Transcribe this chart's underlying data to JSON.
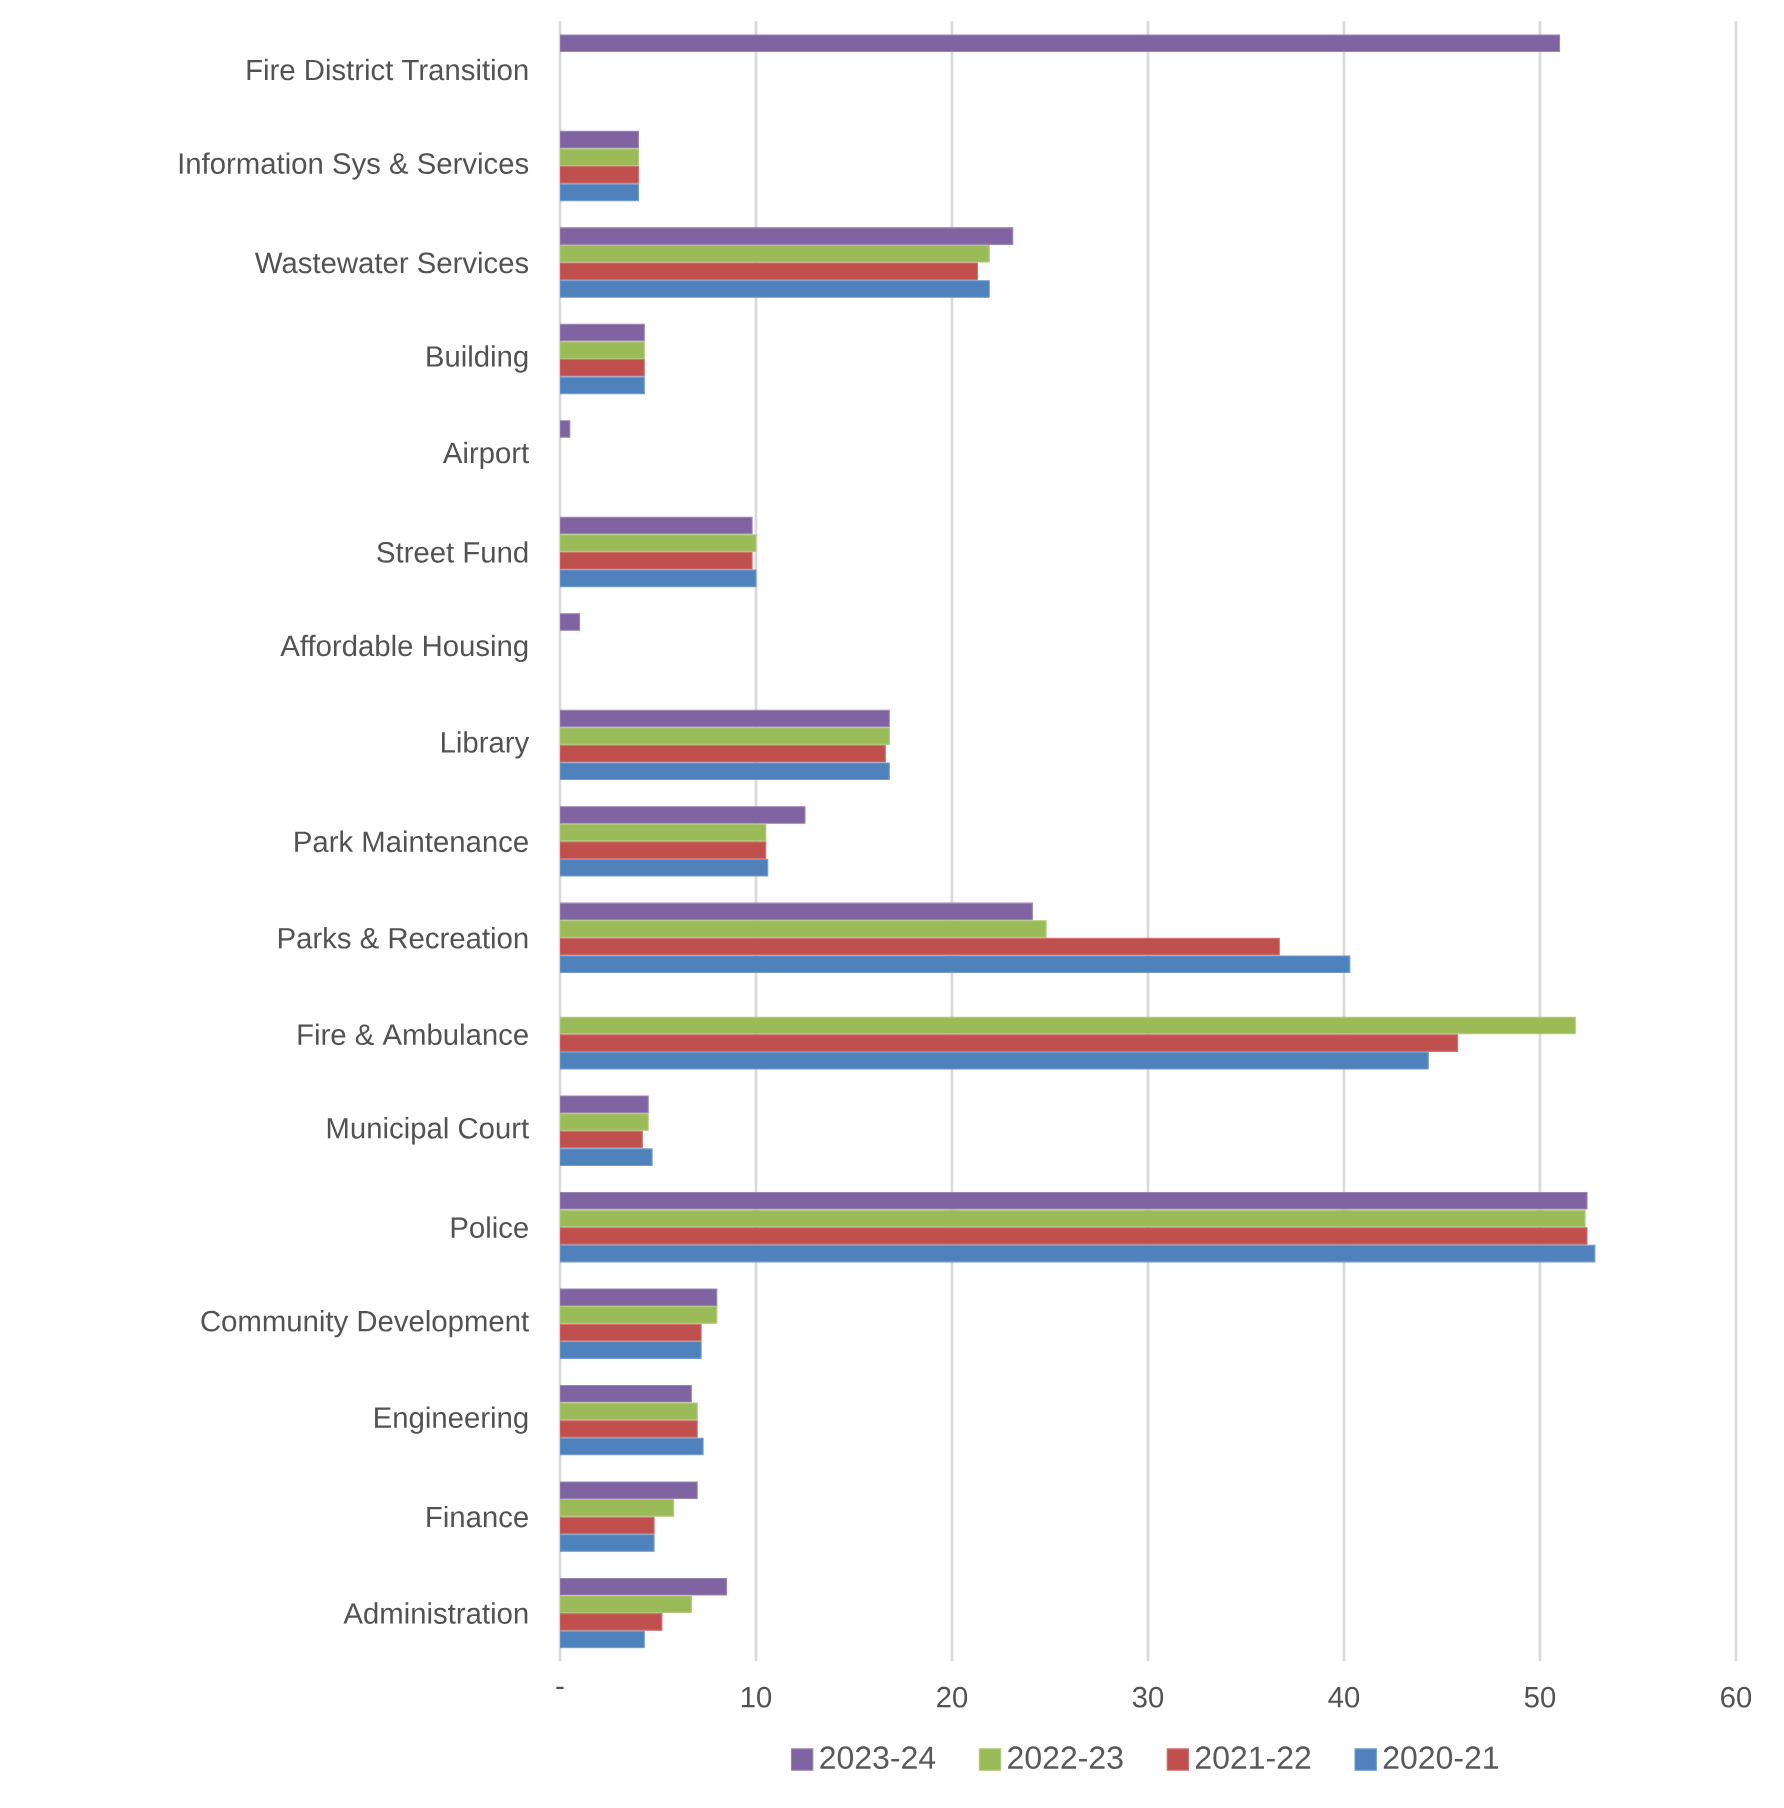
{
  "chart_data": {
    "type": "bar",
    "orientation": "horizontal",
    "categories": [
      "Fire District Transition",
      "Information Sys & Services",
      "Wastewater Services",
      "Building",
      "Airport",
      "Street Fund",
      "Affordable Housing",
      "Library",
      "Park Maintenance",
      "Parks & Recreation",
      "Fire & Ambulance",
      "Municipal Court",
      "Police",
      "Community Development",
      "Engineering",
      "Finance",
      "Administration"
    ],
    "series": [
      {
        "name": "2023-24",
        "color": "#8064a2",
        "values": [
          51.0,
          4.0,
          23.1,
          4.3,
          0.5,
          9.8,
          1.0,
          16.8,
          12.5,
          24.1,
          null,
          4.5,
          52.4,
          8.0,
          6.7,
          7.0,
          8.5
        ]
      },
      {
        "name": "2022-23",
        "color": "#9bbb59",
        "values": [
          null,
          4.0,
          21.9,
          4.3,
          null,
          10.0,
          null,
          16.8,
          10.5,
          24.8,
          51.8,
          4.5,
          52.3,
          8.0,
          7.0,
          5.8,
          6.7
        ]
      },
      {
        "name": "2021-22",
        "color": "#c0504d",
        "values": [
          null,
          4.0,
          21.3,
          4.3,
          null,
          9.8,
          null,
          16.6,
          10.5,
          36.7,
          45.8,
          4.2,
          52.4,
          7.2,
          7.0,
          4.8,
          5.2
        ]
      },
      {
        "name": "2020-21",
        "color": "#4f81bd",
        "values": [
          null,
          4.0,
          21.9,
          4.3,
          null,
          10.0,
          null,
          16.8,
          10.6,
          40.3,
          44.3,
          4.7,
          52.8,
          7.2,
          7.3,
          4.8,
          4.3
        ]
      }
    ],
    "xlim": [
      0,
      60
    ],
    "xticks": [
      {
        "value": 0,
        "label": "-"
      },
      10,
      20,
      30,
      40,
      50,
      60
    ],
    "grid": "x",
    "legend": "bottom"
  }
}
